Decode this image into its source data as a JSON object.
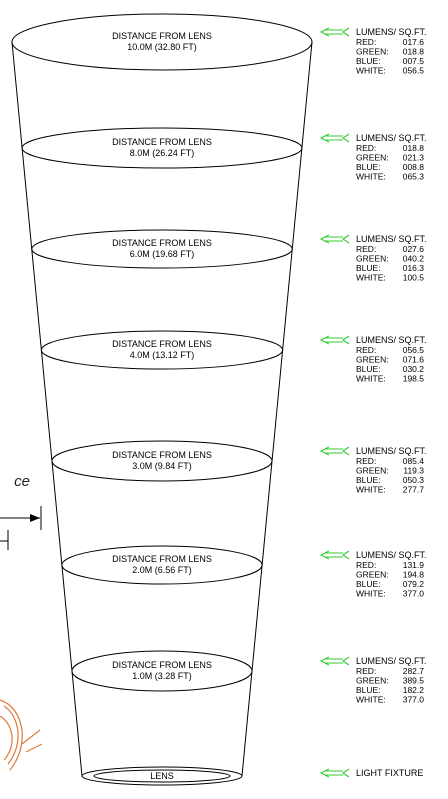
{
  "levels": [
    {
      "label_line1": "DISTANCE FROM LENS",
      "label_line2": "10.0M (32.80 FT)",
      "header": "LUMENS/ SQ.FT.",
      "readings": [
        {
          "name": "RED:",
          "value": "017.6"
        },
        {
          "name": "GREEN:",
          "value": "018.8"
        },
        {
          "name": "BLUE:",
          "value": "007.5"
        },
        {
          "name": "WHITE:",
          "value": "056.5"
        }
      ]
    },
    {
      "label_line1": "DISTANCE FROM LENS",
      "label_line2": "8.0M (26.24 FT)",
      "header": "LUMENS/ SQ.FT.",
      "readings": [
        {
          "name": "RED:",
          "value": "018.8"
        },
        {
          "name": "GREEN:",
          "value": "021.3"
        },
        {
          "name": "BLUE:",
          "value": "008.8"
        },
        {
          "name": "WHITE:",
          "value": "065.3"
        }
      ]
    },
    {
      "label_line1": "DISTANCE FROM LENS",
      "label_line2": "6.0M (19.68 FT)",
      "header": "LUMENS/ SQ.FT.",
      "readings": [
        {
          "name": "RED:",
          "value": "027.6"
        },
        {
          "name": "GREEN:",
          "value": "040.2"
        },
        {
          "name": "BLUE:",
          "value": "016.3"
        },
        {
          "name": "WHITE:",
          "value": "100.5"
        }
      ]
    },
    {
      "label_line1": "DISTANCE FROM LENS",
      "label_line2": "4.0M (13.12 FT)",
      "header": "LUMENS/ SQ.FT.",
      "readings": [
        {
          "name": "RED:",
          "value": "056.5"
        },
        {
          "name": "GREEN:",
          "value": "071.6"
        },
        {
          "name": "BLUE:",
          "value": "030.2"
        },
        {
          "name": "WHITE:",
          "value": "198.5"
        }
      ]
    },
    {
      "label_line1": "DISTANCE FROM LENS",
      "label_line2": "3.0M (9.84 FT)",
      "header": "LUMENS/ SQ.FT.",
      "readings": [
        {
          "name": "RED:",
          "value": "085.4"
        },
        {
          "name": "GREEN:",
          "value": "119.3"
        },
        {
          "name": "BLUE:",
          "value": "050.3"
        },
        {
          "name": "WHITE:",
          "value": "277.7"
        }
      ]
    },
    {
      "label_line1": "DISTANCE FROM LENS",
      "label_line2": "2.0M (6.56 FT)",
      "header": "LUMENS/ SQ.FT.",
      "readings": [
        {
          "name": "RED:",
          "value": "131.9"
        },
        {
          "name": "GREEN:",
          "value": "194.8"
        },
        {
          "name": "BLUE:",
          "value": "079.2"
        },
        {
          "name": "WHITE:",
          "value": "377.0"
        }
      ]
    },
    {
      "label_line1": "DISTANCE FROM LENS",
      "label_line2": "1.0M (3.28 FT)",
      "header": "LUMENS/ SQ.FT.",
      "readings": [
        {
          "name": "RED:",
          "value": "282.7"
        },
        {
          "name": "GREEN:",
          "value": "389.5"
        },
        {
          "name": "BLUE:",
          "value": "182.2"
        },
        {
          "name": "WHITE:",
          "value": "377.0"
        }
      ]
    }
  ],
  "lens": {
    "label": "LENS"
  },
  "fixture": {
    "label": "LIGHT FIXTURE"
  },
  "partial_text": "ce",
  "colors": {
    "arrow": "#33cc33",
    "line": "#000000",
    "logo": "#e07a3a"
  }
}
